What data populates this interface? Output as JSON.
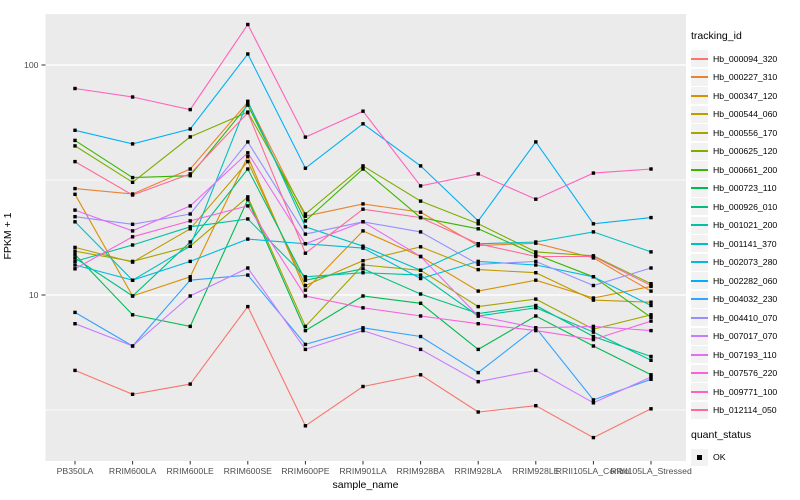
{
  "figure": {
    "colors": {
      "panel_bg": "#EBEBEB",
      "grid": "#FFFFFF",
      "tick_mark": "#333333",
      "tick_text": "#4D4D4D",
      "title_text": "#000000",
      "point": "#000000",
      "legend_key_bg": "#F2F2F2"
    },
    "legend": {
      "title": "tracking_id",
      "quant_title": "quant_status",
      "quant_items": [
        {
          "label": "OK",
          "marker": "black-square"
        }
      ]
    }
  },
  "chart_data": {
    "type": "line",
    "title": "",
    "xlabel": "sample_name",
    "ylabel": "FPKM + 1",
    "y_scale": "log10",
    "ylim": [
      1.9,
      166
    ],
    "y_major_ticks": [
      100,
      10
    ],
    "y_minor_ticks": [
      31.62,
      3.162
    ],
    "grid": true,
    "legend_position": "right",
    "point_marker": "black-square",
    "quant_status": "OK",
    "categories": [
      "PB350LA",
      "RRIM600LA",
      "RRIM600LE",
      "RRIM600SE",
      "RRIM600PE",
      "RRIM901LA",
      "RRIM928BA",
      "RRIM928LA",
      "RRIM928LE",
      "RRII105LA_Control",
      "RRII105LA_Stressed"
    ],
    "series": [
      {
        "name": "Hb_000094_320",
        "color": "#F8766D",
        "values": [
          4.7,
          3.7,
          4.1,
          8.9,
          2.7,
          4.0,
          4.5,
          3.1,
          3.3,
          2.4,
          3.2
        ]
      },
      {
        "name": "Hb_000227_310",
        "color": "#EA8331",
        "values": [
          29.0,
          27.5,
          35.3,
          69.0,
          22.0,
          24.9,
          22.9,
          16.4,
          16.8,
          14.5,
          10.4
        ]
      },
      {
        "name": "Hb_000347_120",
        "color": "#D89000",
        "values": [
          27.4,
          9.9,
          12.0,
          40.0,
          10.5,
          19.0,
          14.7,
          10.4,
          11.6,
          9.7,
          10.9
        ]
      },
      {
        "name": "Hb_000544_060",
        "color": "#C09B00",
        "values": [
          16.1,
          13.9,
          19.4,
          38.0,
          11.0,
          14.1,
          16.2,
          12.9,
          12.5,
          9.5,
          9.3
        ]
      },
      {
        "name": "Hb_000556_170",
        "color": "#A3A500",
        "values": [
          15.5,
          14.0,
          16.3,
          26.7,
          7.3,
          13.5,
          12.8,
          8.9,
          9.6,
          7.1,
          8.2
        ]
      },
      {
        "name": "Hb_000625_120",
        "color": "#7CAE00",
        "values": [
          44.5,
          30.9,
          48.7,
          62.4,
          22.5,
          36.4,
          25.6,
          20.4,
          15.4,
          14.8,
          11.2
        ]
      },
      {
        "name": "Hb_000661_200",
        "color": "#39B600",
        "values": [
          47.0,
          32.4,
          33.0,
          67.0,
          21.0,
          35.3,
          21.7,
          19.4,
          15.0,
          12.0,
          8.0
        ]
      },
      {
        "name": "Hb_000723_110",
        "color": "#00BB4E",
        "values": [
          15.0,
          8.2,
          7.3,
          26.0,
          7.0,
          9.9,
          9.2,
          5.8,
          8.1,
          6.0,
          4.5
        ]
      },
      {
        "name": "Hb_000926_010",
        "color": "#00BF7D",
        "values": [
          14.5,
          9.9,
          17.0,
          35.3,
          11.6,
          13.0,
          10.1,
          8.3,
          9.0,
          6.6,
          5.4
        ]
      },
      {
        "name": "Hb_001021_200",
        "color": "#00C1A3",
        "values": [
          14.0,
          16.5,
          19.8,
          21.4,
          12.0,
          12.5,
          12.2,
          8.1,
          8.8,
          6.9,
          5.2
        ]
      },
      {
        "name": "Hb_001141_370",
        "color": "#00BFC4",
        "values": [
          20.8,
          11.6,
          16.3,
          69.5,
          19.8,
          16.3,
          12.8,
          16.7,
          17.0,
          18.8,
          15.4
        ]
      },
      {
        "name": "Hb_002073_280",
        "color": "#00BAE0",
        "values": [
          13.5,
          11.6,
          14.0,
          17.5,
          16.7,
          16.0,
          11.8,
          14.0,
          13.5,
          12.0,
          9.0
        ]
      },
      {
        "name": "Hb_002282_060",
        "color": "#00B0F6",
        "values": [
          52.0,
          45.4,
          52.7,
          111.6,
          35.6,
          55.5,
          36.4,
          21.0,
          46.3,
          20.4,
          21.7
        ]
      },
      {
        "name": "Hb_004032_230",
        "color": "#35A2FF",
        "values": [
          8.4,
          6.0,
          11.6,
          12.2,
          6.1,
          7.2,
          6.6,
          4.6,
          7.2,
          3.5,
          4.3
        ]
      },
      {
        "name": "Hb_004410_070",
        "color": "#9590FF",
        "values": [
          21.9,
          20.3,
          22.5,
          46.3,
          18.4,
          20.8,
          18.8,
          13.6,
          14.0,
          11.0,
          13.1
        ]
      },
      {
        "name": "Hb_007017_070",
        "color": "#C77CFF",
        "values": [
          7.5,
          6.0,
          9.9,
          13.1,
          5.8,
          7.0,
          5.8,
          4.2,
          4.7,
          3.4,
          4.4
        ]
      },
      {
        "name": "Hb_007193_110",
        "color": "#E76BF3",
        "values": [
          23.4,
          19.0,
          24.4,
          41.5,
          16.7,
          20.8,
          14.7,
          8.1,
          7.2,
          7.3,
          7.0
        ]
      },
      {
        "name": "Hb_007576_220",
        "color": "#FA62DB",
        "values": [
          13.0,
          17.9,
          21.0,
          24.4,
          9.9,
          8.8,
          8.1,
          7.5,
          7.0,
          6.4,
          7.7
        ]
      },
      {
        "name": "Hb_009771_100",
        "color": "#FF62BC",
        "values": [
          79.0,
          72.6,
          64.0,
          150.0,
          48.6,
          63.0,
          29.8,
          33.6,
          26.1,
          33.9,
          35.3
        ]
      },
      {
        "name": "Hb_012114_050",
        "color": "#FF6A98",
        "values": [
          38.0,
          27.2,
          33.6,
          62.0,
          15.2,
          23.6,
          21.7,
          16.7,
          14.7,
          14.7,
          11.0
        ]
      }
    ]
  }
}
